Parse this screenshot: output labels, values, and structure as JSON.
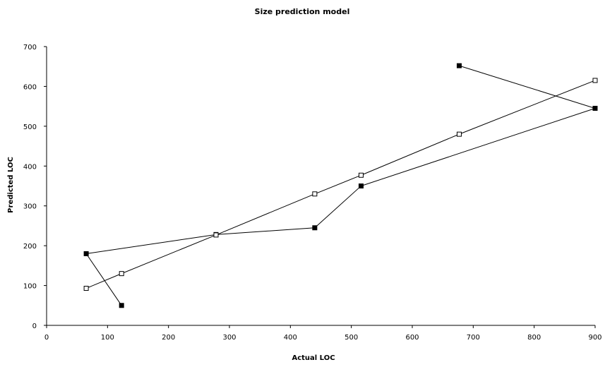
{
  "chart_data": {
    "type": "line",
    "title": "Size prediction model",
    "xlabel": "Actual LOC",
    "ylabel": "Predicted LOC",
    "xlim": [
      0,
      900
    ],
    "ylim": [
      0,
      700
    ],
    "x_ticks": [
      0,
      100,
      200,
      300,
      400,
      500,
      600,
      700,
      800,
      900
    ],
    "y_ticks": [
      0,
      100,
      200,
      300,
      400,
      500,
      600,
      700
    ],
    "grid": false,
    "series": [
      {
        "marker": "filled-square",
        "points": [
          {
            "x": 123,
            "y": 50
          },
          {
            "x": 65,
            "y": 180
          },
          {
            "x": 278,
            "y": 228
          },
          {
            "x": 440,
            "y": 245
          },
          {
            "x": 516,
            "y": 350
          },
          {
            "x": 900,
            "y": 545
          },
          {
            "x": 677,
            "y": 652
          }
        ]
      },
      {
        "marker": "open-square",
        "points": [
          {
            "x": 65,
            "y": 93
          },
          {
            "x": 123,
            "y": 130
          },
          {
            "x": 278,
            "y": 227
          },
          {
            "x": 440,
            "y": 330
          },
          {
            "x": 516,
            "y": 377
          },
          {
            "x": 677,
            "y": 480
          },
          {
            "x": 900,
            "y": 615
          }
        ]
      }
    ]
  }
}
